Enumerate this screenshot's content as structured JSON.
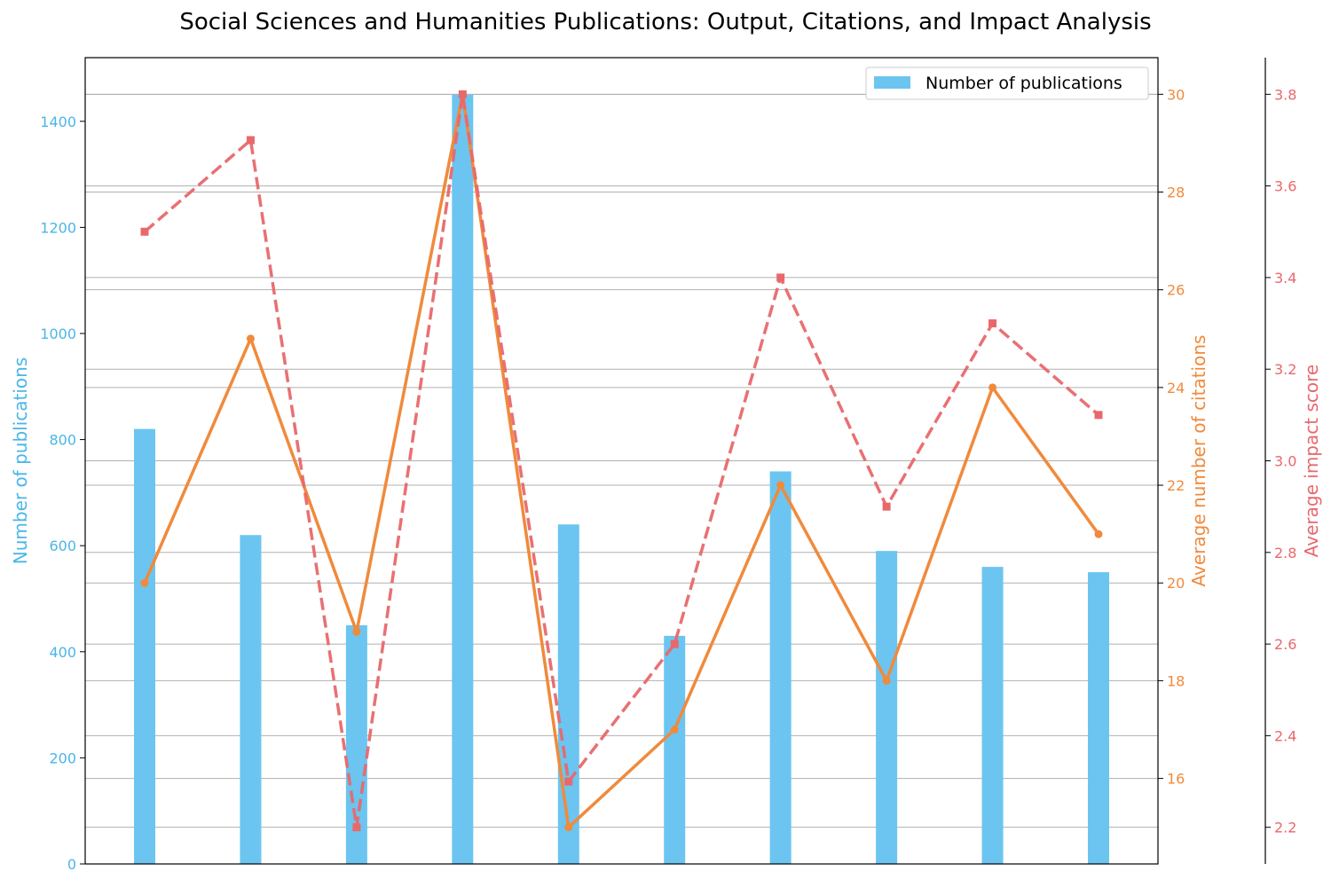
{
  "chart_data": {
    "type": "bar",
    "title": "Social Sciences and Humanities Publications: Output, Citations, and Impact Analysis",
    "categories": [
      "",
      "",
      "",
      "",
      "",
      "",
      "",
      "",
      "",
      ""
    ],
    "series": [
      {
        "name": "Number of publications",
        "type": "bar",
        "axis": "left",
        "color": "#6BC5F0",
        "values": [
          820,
          620,
          450,
          1450,
          640,
          430,
          740,
          590,
          560,
          550
        ]
      },
      {
        "type": "line",
        "axis": "right",
        "color": "#F08A3C",
        "line_style": "solid",
        "marker": "circle",
        "values": [
          20.0,
          25.0,
          19.0,
          30.0,
          15.0,
          17.0,
          22.0,
          18.0,
          24.0,
          21.0
        ]
      },
      {
        "type": "line",
        "axis": "far-right",
        "color": "#E8686C",
        "line_style": "dashed",
        "marker": "square",
        "values": [
          3.5,
          3.7,
          2.2,
          3.8,
          2.3,
          2.6,
          3.4,
          2.9,
          3.3,
          3.1
        ]
      }
    ],
    "axes": {
      "left": {
        "label": "Number of publications",
        "ylim": [
          0,
          1520
        ],
        "ticks": [
          0,
          200,
          400,
          600,
          800,
          1000,
          1200,
          1400
        ],
        "color": "#4AB6E8"
      },
      "right": {
        "label": "Average number of citations",
        "ylim": [
          14.25,
          30.75
        ],
        "ticks": [
          16,
          18,
          20,
          22,
          24,
          26,
          28,
          30
        ],
        "color": "#F08A3C"
      },
      "far_right": {
        "label": "Average impact score",
        "ylim": [
          2.12,
          3.88
        ],
        "ticks": [
          2.2,
          2.4,
          2.6,
          2.8,
          3.0,
          3.2,
          3.4,
          3.6,
          3.8
        ],
        "color": "#E8686C"
      }
    },
    "grid": "horizontal",
    "legend": {
      "position": "top-right",
      "entries": [
        "Number of publications"
      ]
    }
  }
}
